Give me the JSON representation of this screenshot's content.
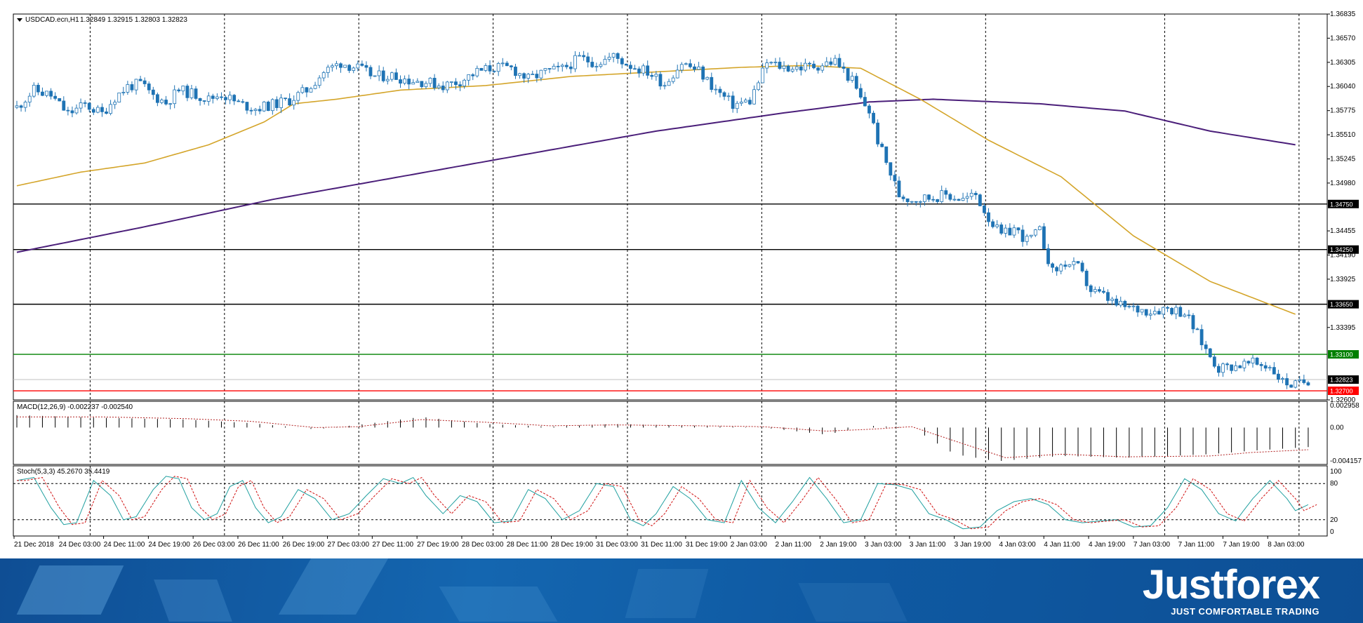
{
  "chart_data": [
    {
      "type": "candlestick",
      "title": "USDCAD.ecn,H1",
      "ohlc_readout": "1.32849 1.32915 1.32803 1.32823",
      "ylim": [
        1.326,
        1.36835
      ],
      "grid": true,
      "y_ticks": [
        "1.36835",
        "1.36570",
        "1.36305",
        "1.36040",
        "1.35775",
        "1.35510",
        "1.35245",
        "1.34980",
        "1.34455",
        "1.34190",
        "1.33925",
        "1.33395",
        "1.32600"
      ],
      "x_ticks": [
        "21 Dec 2018",
        "24 Dec 03:00",
        "24 Dec 11:00",
        "24 Dec 19:00",
        "26 Dec 03:00",
        "26 Dec 11:00",
        "26 Dec 19:00",
        "27 Dec 03:00",
        "27 Dec 11:00",
        "27 Dec 19:00",
        "28 Dec 03:00",
        "28 Dec 11:00",
        "28 Dec 19:00",
        "31 Dec 03:00",
        "31 Dec 11:00",
        "31 Dec 19:00",
        "2 Jan 03:00",
        "2 Jan 11:00",
        "2 Jan 19:00",
        "3 Jan 03:00",
        "3 Jan 11:00",
        "3 Jan 19:00",
        "4 Jan 03:00",
        "4 Jan 11:00",
        "4 Jan 19:00",
        "7 Jan 03:00",
        "7 Jan 11:00",
        "7 Jan 19:00",
        "8 Jan 03:00"
      ],
      "vertical_grid_at": [
        "21 Dec 2018",
        "24 Dec 19:00",
        "26 Dec 19:00",
        "27 Dec 19:00",
        "28 Dec 19:00",
        "31 Dec 19:00",
        "2 Jan 19:00",
        "3 Jan 11:00",
        "4 Jan 19:00",
        "7 Jan 19:00"
      ],
      "horizontal_levels": [
        {
          "value": 1.3475,
          "label": "1.34750",
          "color": "#000000"
        },
        {
          "value": 1.3425,
          "label": "1.34250",
          "color": "#000000"
        },
        {
          "value": 1.3365,
          "label": "1.33650",
          "color": "#000000"
        },
        {
          "value": 1.331,
          "label": "1.33100",
          "color": "#008000"
        },
        {
          "value": 1.327,
          "label": "1.32700",
          "color": "#ff0000"
        }
      ],
      "current_price": {
        "value": 1.32823,
        "label": "1.32823"
      },
      "colors": {
        "candle_up": "#1e73b4",
        "candle_down": "#1e73b4",
        "ma_fast": "#d4a52a",
        "ma_slow": "#4b1f7a"
      },
      "close_path": [
        [
          0,
          1.3581
        ],
        [
          4,
          1.36
        ],
        [
          8,
          1.3594
        ],
        [
          12,
          1.3574
        ],
        [
          16,
          1.3584
        ],
        [
          20,
          1.3574
        ],
        [
          23,
          1.3592
        ],
        [
          26,
          1.3604
        ],
        [
          29,
          1.3607
        ],
        [
          32,
          1.3594
        ],
        [
          35,
          1.3586
        ],
        [
          38,
          1.36
        ],
        [
          42,
          1.3595
        ],
        [
          45,
          1.359
        ],
        [
          48,
          1.3596
        ],
        [
          52,
          1.3585
        ],
        [
          56,
          1.358
        ],
        [
          60,
          1.3584
        ],
        [
          64,
          1.3589
        ],
        [
          68,
          1.36
        ],
        [
          72,
          1.362
        ],
        [
          76,
          1.363
        ],
        [
          80,
          1.3624
        ],
        [
          84,
          1.3615
        ],
        [
          88,
          1.3616
        ],
        [
          92,
          1.3611
        ],
        [
          96,
          1.3609
        ],
        [
          100,
          1.3605
        ],
        [
          104,
          1.361
        ],
        [
          108,
          1.362
        ],
        [
          112,
          1.3625
        ],
        [
          116,
          1.3624
        ],
        [
          120,
          1.3612
        ],
        [
          124,
          1.362
        ],
        [
          128,
          1.3623
        ],
        [
          132,
          1.3635
        ],
        [
          136,
          1.363
        ],
        [
          140,
          1.3637
        ],
        [
          144,
          1.3627
        ],
        [
          148,
          1.362
        ],
        [
          152,
          1.3607
        ],
        [
          156,
          1.363
        ],
        [
          160,
          1.3621
        ],
        [
          164,
          1.36
        ],
        [
          168,
          1.3584
        ],
        [
          172,
          1.3588
        ],
        [
          176,
          1.363
        ],
        [
          180,
          1.3625
        ],
        [
          184,
          1.3625
        ],
        [
          188,
          1.3627
        ],
        [
          192,
          1.3632
        ],
        [
          196,
          1.361
        ],
        [
          198,
          1.359
        ],
        [
          200,
          1.3577
        ],
        [
          202,
          1.3545
        ],
        [
          204,
          1.352
        ],
        [
          207,
          1.3485
        ],
        [
          210,
          1.348
        ],
        [
          214,
          1.3482
        ],
        [
          218,
          1.3485
        ],
        [
          222,
          1.348
        ],
        [
          225,
          1.3485
        ],
        [
          228,
          1.346
        ],
        [
          231,
          1.344
        ],
        [
          234,
          1.3448
        ],
        [
          237,
          1.3435
        ],
        [
          240,
          1.3445
        ],
        [
          243,
          1.34
        ],
        [
          246,
          1.341
        ],
        [
          249,
          1.3405
        ],
        [
          252,
          1.338
        ],
        [
          255,
          1.3374
        ],
        [
          258,
          1.3364
        ],
        [
          262,
          1.336
        ],
        [
          266,
          1.3358
        ],
        [
          270,
          1.3361
        ],
        [
          274,
          1.3356
        ],
        [
          276,
          1.334
        ],
        [
          279,
          1.3315
        ],
        [
          282,
          1.3295
        ],
        [
          286,
          1.3298
        ],
        [
          290,
          1.33
        ],
        [
          294,
          1.3297
        ],
        [
          297,
          1.328
        ],
        [
          300,
          1.3276
        ],
        [
          303,
          1.3282
        ]
      ],
      "ma_fast_path": [
        [
          0,
          1.3495
        ],
        [
          15,
          1.351
        ],
        [
          30,
          1.352
        ],
        [
          45,
          1.354
        ],
        [
          58,
          1.3565
        ],
        [
          65,
          1.3585
        ],
        [
          75,
          1.359
        ],
        [
          90,
          1.36
        ],
        [
          110,
          1.3605
        ],
        [
          130,
          1.3615
        ],
        [
          150,
          1.362
        ],
        [
          170,
          1.3625
        ],
        [
          185,
          1.3627
        ],
        [
          198,
          1.3624
        ],
        [
          212,
          1.359
        ],
        [
          228,
          1.3545
        ],
        [
          245,
          1.3505
        ],
        [
          262,
          1.344
        ],
        [
          280,
          1.339
        ],
        [
          300,
          1.3354
        ]
      ],
      "ma_slow_path": [
        [
          0,
          1.3422
        ],
        [
          30,
          1.345
        ],
        [
          60,
          1.348
        ],
        [
          90,
          1.3505
        ],
        [
          120,
          1.353
        ],
        [
          150,
          1.3555
        ],
        [
          180,
          1.3575
        ],
        [
          200,
          1.3587
        ],
        [
          215,
          1.359
        ],
        [
          240,
          1.3585
        ],
        [
          260,
          1.3577
        ],
        [
          280,
          1.3555
        ],
        [
          300,
          1.354
        ]
      ]
    },
    {
      "type": "histogram",
      "title": "MACD(12,26,9) -0.002237 -0.002540",
      "y_ticks": [
        "0.002958",
        "0.00",
        "-0.004157"
      ],
      "ylim": [
        -0.004157,
        0.002958
      ],
      "colors": {
        "bars": "#000000",
        "signal": "#b22222"
      },
      "macd_path": [
        [
          0,
          0.0014
        ],
        [
          20,
          0.0011
        ],
        [
          40,
          0.0009
        ],
        [
          55,
          0.0005
        ],
        [
          70,
          -0.0002
        ],
        [
          80,
          0.0003
        ],
        [
          95,
          0.0012
        ],
        [
          110,
          0.0004
        ],
        [
          125,
          0.0001
        ],
        [
          140,
          0.0004
        ],
        [
          160,
          0.0002
        ],
        [
          175,
          0.0
        ],
        [
          190,
          -0.0008
        ],
        [
          200,
          0.0002
        ],
        [
          210,
          0.0
        ],
        [
          220,
          -0.003
        ],
        [
          230,
          -0.0038
        ],
        [
          245,
          -0.0032
        ],
        [
          260,
          -0.0034
        ],
        [
          280,
          -0.003
        ],
        [
          290,
          -0.0026
        ],
        [
          303,
          -0.0022
        ]
      ],
      "signal_path": [
        [
          0,
          0.0012
        ],
        [
          20,
          0.0012
        ],
        [
          40,
          0.001
        ],
        [
          55,
          0.0007
        ],
        [
          70,
          0.0
        ],
        [
          80,
          0.0001
        ],
        [
          95,
          0.0009
        ],
        [
          110,
          0.0006
        ],
        [
          125,
          0.0002
        ],
        [
          140,
          0.0003
        ],
        [
          160,
          0.0002
        ],
        [
          175,
          0.0001
        ],
        [
          190,
          -0.0004
        ],
        [
          200,
          -0.0002
        ],
        [
          210,
          0.0001
        ],
        [
          220,
          -0.0015
        ],
        [
          232,
          -0.0034
        ],
        [
          245,
          -0.003
        ],
        [
          260,
          -0.0033
        ],
        [
          280,
          -0.0032
        ],
        [
          290,
          -0.0028
        ],
        [
          303,
          -0.0025
        ]
      ]
    },
    {
      "type": "line",
      "title": "Stoch(5,3,3) 45.2670 35.4419",
      "y_ticks": [
        "100",
        "80",
        "20",
        "0"
      ],
      "ylim": [
        0,
        100
      ],
      "levels": [
        80,
        20
      ],
      "colors": {
        "main": "#20a0a0",
        "signal": "#d01010"
      },
      "stoch_path": [
        [
          0,
          85
        ],
        [
          4,
          90
        ],
        [
          8,
          40
        ],
        [
          11,
          12
        ],
        [
          14,
          15
        ],
        [
          18,
          85
        ],
        [
          22,
          60
        ],
        [
          25,
          20
        ],
        [
          28,
          25
        ],
        [
          32,
          70
        ],
        [
          35,
          92
        ],
        [
          38,
          88
        ],
        [
          41,
          40
        ],
        [
          44,
          20
        ],
        [
          47,
          30
        ],
        [
          50,
          75
        ],
        [
          53,
          85
        ],
        [
          56,
          40
        ],
        [
          59,
          15
        ],
        [
          62,
          25
        ],
        [
          66,
          70
        ],
        [
          70,
          55
        ],
        [
          74,
          20
        ],
        [
          78,
          30
        ],
        [
          82,
          60
        ],
        [
          86,
          88
        ],
        [
          90,
          80
        ],
        [
          93,
          90
        ],
        [
          96,
          60
        ],
        [
          100,
          30
        ],
        [
          104,
          60
        ],
        [
          108,
          50
        ],
        [
          112,
          15
        ],
        [
          116,
          18
        ],
        [
          120,
          70
        ],
        [
          124,
          55
        ],
        [
          128,
          20
        ],
        [
          132,
          35
        ],
        [
          136,
          80
        ],
        [
          140,
          75
        ],
        [
          144,
          20
        ],
        [
          147,
          10
        ],
        [
          150,
          30
        ],
        [
          154,
          75
        ],
        [
          158,
          55
        ],
        [
          162,
          20
        ],
        [
          166,
          15
        ],
        [
          170,
          85
        ],
        [
          174,
          40
        ],
        [
          178,
          15
        ],
        [
          182,
          50
        ],
        [
          186,
          90
        ],
        [
          190,
          55
        ],
        [
          194,
          15
        ],
        [
          198,
          20
        ],
        [
          202,
          80
        ],
        [
          206,
          78
        ],
        [
          210,
          70
        ],
        [
          214,
          30
        ],
        [
          218,
          20
        ],
        [
          222,
          5
        ],
        [
          226,
          8
        ],
        [
          230,
          35
        ],
        [
          234,
          50
        ],
        [
          238,
          55
        ],
        [
          242,
          45
        ],
        [
          246,
          20
        ],
        [
          250,
          15
        ],
        [
          254,
          18
        ],
        [
          258,
          20
        ],
        [
          262,
          8
        ],
        [
          266,
          10
        ],
        [
          270,
          40
        ],
        [
          274,
          88
        ],
        [
          278,
          70
        ],
        [
          282,
          30
        ],
        [
          286,
          18
        ],
        [
          290,
          55
        ],
        [
          294,
          85
        ],
        [
          298,
          55
        ],
        [
          300,
          35
        ],
        [
          303,
          45
        ]
      ]
    }
  ],
  "banner": {
    "brand_name": "Justforex",
    "tagline": "JUST COMFORTABLE TRADING"
  }
}
